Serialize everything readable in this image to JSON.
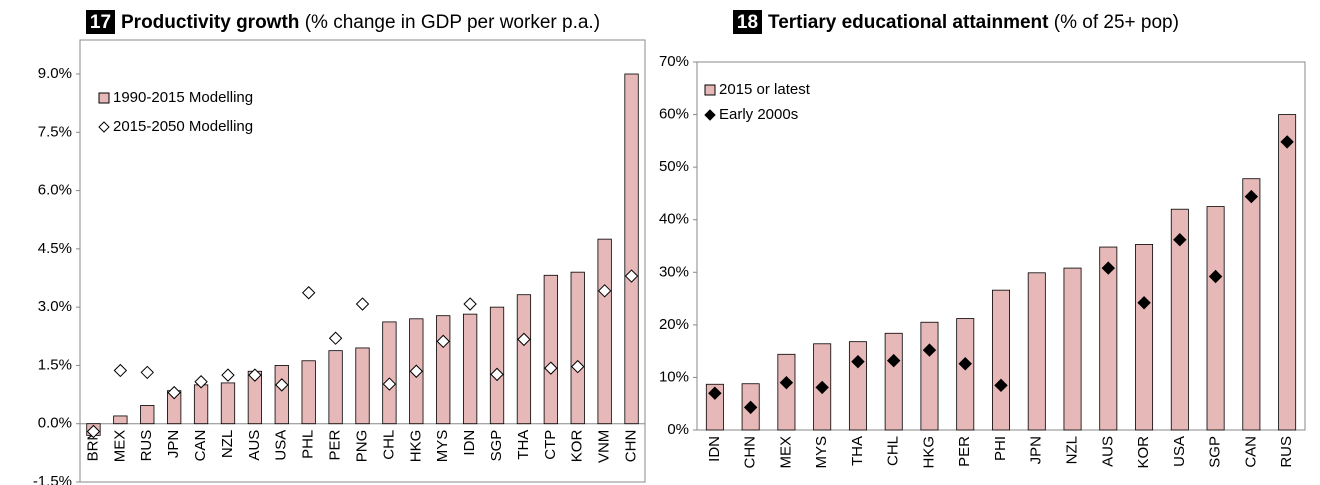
{
  "chart_data": [
    {
      "type": "bar",
      "number": "17",
      "title": "Productivity growth",
      "subtitle": "(% change in GDP per worker p.a.)",
      "categories": [
        "BRN",
        "MEX",
        "RUS",
        "JPN",
        "CAN",
        "NZL",
        "AUS",
        "USA",
        "PHL",
        "PER",
        "PNG",
        "CHL",
        "HKG",
        "MYS",
        "IDN",
        "SGP",
        "THA",
        "CTP",
        "KOR",
        "VNM",
        "CHN"
      ],
      "series": [
        {
          "name": "1990-2015 Modelling",
          "type": "bar",
          "color": "#e6b8b7",
          "edgecolor": "#000000",
          "values": [
            -0.3,
            0.2,
            0.47,
            0.85,
            1.0,
            1.05,
            1.35,
            1.5,
            1.62,
            1.88,
            1.95,
            2.62,
            2.7,
            2.78,
            2.82,
            3.0,
            3.32,
            3.82,
            3.9,
            4.75,
            9.0
          ]
        },
        {
          "name": "2015-2050 Modelling",
          "type": "scatter",
          "color": "#ffffff",
          "edgecolor": "#000000",
          "values": [
            -0.2,
            1.37,
            1.32,
            0.8,
            1.08,
            1.25,
            1.25,
            1.0,
            3.37,
            2.2,
            3.08,
            1.02,
            1.35,
            2.12,
            3.08,
            1.27,
            2.17,
            1.43,
            1.47,
            3.42,
            3.8
          ]
        }
      ],
      "ylim": [
        -1.5,
        9.0
      ],
      "yticks": [
        {
          "value": -1.5,
          "label": "-1.5%"
        },
        {
          "value": 0,
          "label": "0.0%"
        },
        {
          "value": 1.5,
          "label": "1.5%"
        },
        {
          "value": 3.0,
          "label": "3.0%"
        },
        {
          "value": 4.5,
          "label": "4.5%"
        },
        {
          "value": 6.0,
          "label": "6.0%"
        },
        {
          "value": 7.5,
          "label": "7.5%"
        },
        {
          "value": 9.0,
          "label": "9.0%"
        }
      ],
      "grid": false,
      "legend": "upper left"
    },
    {
      "type": "bar",
      "number": "18",
      "title": "Tertiary educational attainment",
      "subtitle": "(% of 25+ pop)",
      "categories": [
        "IDN",
        "CHN",
        "MEX",
        "MYS",
        "THA",
        "CHL",
        "HKG",
        "PER",
        "PHI",
        "JPN",
        "NZL",
        "AUS",
        "KOR",
        "USA",
        "SGP",
        "CAN",
        "RUS"
      ],
      "series": [
        {
          "name": "2015 or latest",
          "type": "bar",
          "color": "#e6b8b7",
          "edgecolor": "#000000",
          "values": [
            8.7,
            8.8,
            14.4,
            16.4,
            16.8,
            18.4,
            20.5,
            21.2,
            26.6,
            29.9,
            30.8,
            34.8,
            35.3,
            42.0,
            42.5,
            47.8,
            60.0
          ]
        },
        {
          "name": "Early 2000s",
          "type": "scatter",
          "color": "#000000",
          "edgecolor": "#000000",
          "values": [
            7.0,
            4.3,
            9.0,
            8.1,
            13.0,
            13.2,
            15.2,
            12.6,
            8.5,
            null,
            null,
            30.8,
            24.2,
            36.2,
            29.2,
            44.4,
            54.8
          ]
        }
      ],
      "ylim": [
        0,
        70
      ],
      "yticks": [
        {
          "value": 0,
          "label": "0%"
        },
        {
          "value": 10,
          "label": "10%"
        },
        {
          "value": 20,
          "label": "20%"
        },
        {
          "value": 30,
          "label": "30%"
        },
        {
          "value": 40,
          "label": "40%"
        },
        {
          "value": 50,
          "label": "50%"
        },
        {
          "value": 60,
          "label": "60%"
        },
        {
          "value": 70,
          "label": "70%"
        }
      ],
      "grid": false,
      "legend": "upper left"
    }
  ]
}
